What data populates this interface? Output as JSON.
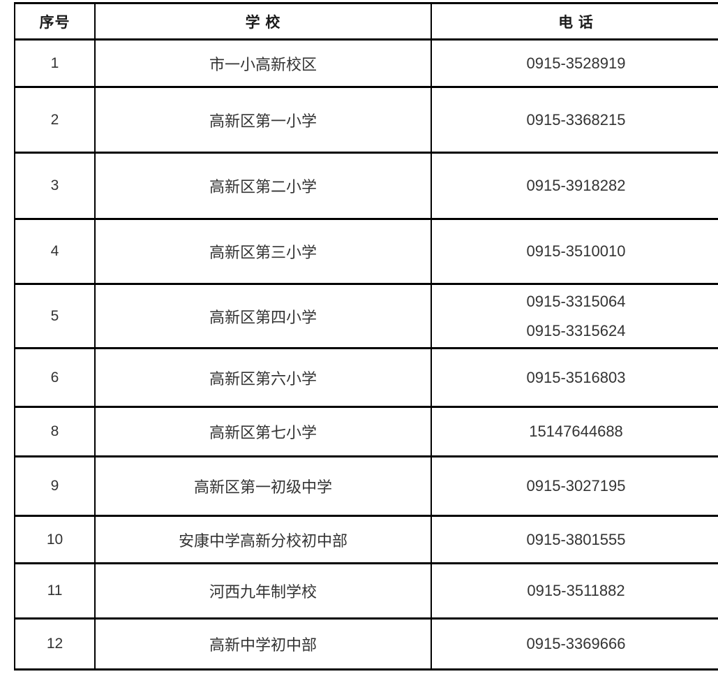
{
  "colors": {
    "background": "#ffffff",
    "border": "#000000",
    "header_text": "#1a1a1a",
    "body_text": "#333333"
  },
  "table": {
    "columns": [
      {
        "key": "index",
        "label": "序号"
      },
      {
        "key": "school",
        "label": "学 校"
      },
      {
        "key": "phone",
        "label": "电 话"
      }
    ],
    "rows": [
      {
        "index": "1",
        "school": "市一小高新校区",
        "phones": [
          "0915-3528919"
        ]
      },
      {
        "index": "2",
        "school": "高新区第一小学",
        "phones": [
          "0915-3368215"
        ]
      },
      {
        "index": "3",
        "school": "高新区第二小学",
        "phones": [
          "0915-3918282"
        ]
      },
      {
        "index": "4",
        "school": "高新区第三小学",
        "phones": [
          "0915-3510010"
        ]
      },
      {
        "index": "5",
        "school": "高新区第四小学",
        "phones": [
          "0915-3315064",
          "0915-3315624"
        ]
      },
      {
        "index": "6",
        "school": "高新区第六小学",
        "phones": [
          "0915-3516803"
        ]
      },
      {
        "index": "8",
        "school": "高新区第七小学",
        "phones": [
          "15147644688"
        ]
      },
      {
        "index": "9",
        "school": "高新区第一初级中学",
        "phones": [
          "0915-3027195"
        ]
      },
      {
        "index": "10",
        "school": "安康中学高新分校初中部",
        "phones": [
          "0915-3801555"
        ]
      },
      {
        "index": "11",
        "school": "河西九年制学校",
        "phones": [
          "0915-3511882"
        ]
      },
      {
        "index": "12",
        "school": "高新中学初中部",
        "phones": [
          "0915-3369666"
        ]
      }
    ]
  }
}
